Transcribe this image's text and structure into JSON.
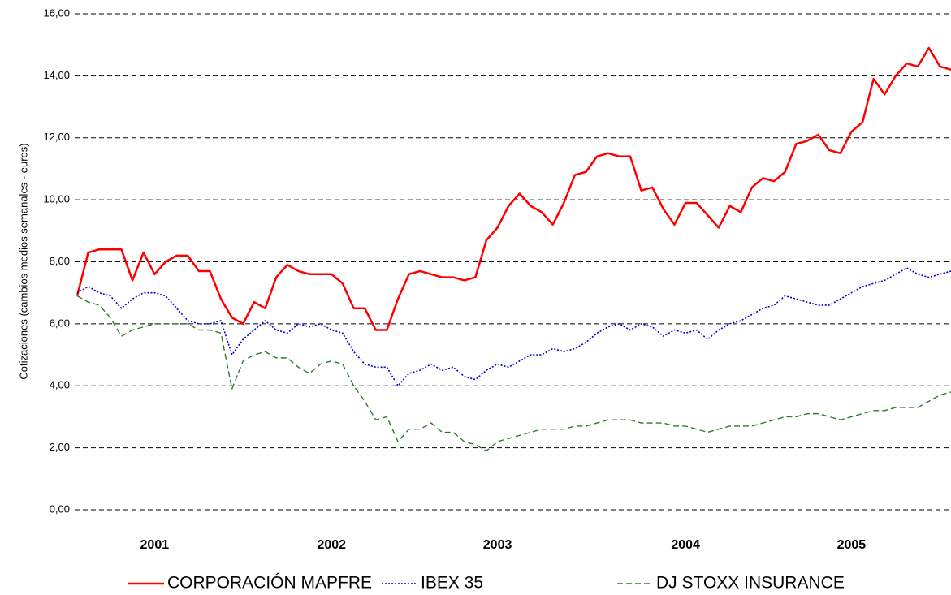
{
  "chart_data": {
    "type": "line",
    "y_label": "Cotizaciones (cambios medios semanales  - euros)",
    "categories": [
      null,
      null,
      null,
      null,
      null,
      null,
      null,
      "2001",
      null,
      null,
      null,
      null,
      null,
      null,
      null,
      null,
      null,
      null,
      null,
      null,
      null,
      null,
      null,
      "2002",
      null,
      null,
      null,
      null,
      null,
      null,
      null,
      null,
      null,
      null,
      null,
      null,
      null,
      null,
      "2003",
      null,
      null,
      null,
      null,
      null,
      null,
      null,
      null,
      null,
      null,
      null,
      null,
      null,
      null,
      null,
      null,
      "2004",
      null,
      null,
      null,
      null,
      null,
      null,
      null,
      null,
      null,
      null,
      null,
      null,
      null,
      null,
      "2005",
      null,
      null,
      null,
      null,
      null,
      null,
      null,
      null,
      null
    ],
    "series": [
      {
        "name": "CORPORACIÓN MAPFRE",
        "color": "#ff0000",
        "style": "solid",
        "values": [
          6.9,
          8.3,
          8.4,
          8.4,
          8.4,
          7.4,
          8.3,
          7.6,
          8.0,
          8.2,
          8.2,
          7.7,
          7.7,
          6.8,
          6.2,
          6.0,
          6.7,
          6.5,
          7.5,
          7.9,
          7.7,
          7.6,
          7.6,
          7.6,
          7.3,
          6.5,
          6.5,
          5.8,
          5.8,
          6.8,
          7.6,
          7.7,
          7.6,
          7.5,
          7.5,
          7.4,
          7.5,
          8.7,
          9.1,
          9.8,
          10.2,
          9.8,
          9.6,
          9.2,
          9.9,
          10.8,
          10.9,
          11.4,
          11.5,
          11.4,
          11.4,
          10.3,
          10.4,
          9.7,
          9.2,
          9.9,
          9.9,
          9.5,
          9.1,
          9.8,
          9.6,
          10.4,
          10.7,
          10.6,
          10.9,
          11.8,
          11.9,
          12.1,
          11.6,
          11.5,
          12.2,
          12.5,
          13.9,
          13.4,
          14.0,
          14.4,
          14.3,
          14.9,
          14.3,
          14.2
        ]
      },
      {
        "name": "IBEX 35",
        "color": "#0000cc",
        "style": "dotted",
        "values": [
          7.0,
          7.2,
          7.0,
          6.9,
          6.5,
          6.8,
          7.0,
          7.0,
          6.9,
          6.5,
          6.1,
          6.0,
          6.0,
          6.1,
          5.0,
          5.5,
          5.8,
          6.1,
          5.8,
          5.7,
          6.0,
          5.9,
          6.0,
          5.8,
          5.7,
          5.1,
          4.7,
          4.6,
          4.6,
          4.0,
          4.4,
          4.5,
          4.7,
          4.5,
          4.6,
          4.3,
          4.2,
          4.5,
          4.7,
          4.6,
          4.8,
          5.0,
          5.0,
          5.2,
          5.1,
          5.2,
          5.4,
          5.7,
          5.9,
          6.0,
          5.8,
          6.0,
          5.9,
          5.6,
          5.8,
          5.7,
          5.8,
          5.5,
          5.8,
          6.0,
          6.1,
          6.3,
          6.5,
          6.6,
          6.9,
          6.8,
          6.7,
          6.6,
          6.6,
          6.8,
          7.0,
          7.2,
          7.3,
          7.4,
          7.6,
          7.8,
          7.6,
          7.5,
          7.6,
          7.7
        ]
      },
      {
        "name": "DJ STOXX INSURANCE",
        "color": "#2f7a2f",
        "style": "dashed",
        "values": [
          6.9,
          6.7,
          6.6,
          6.2,
          5.6,
          5.8,
          5.9,
          6.0,
          6.0,
          6.0,
          6.0,
          5.8,
          5.8,
          5.7,
          3.9,
          4.8,
          5.0,
          5.1,
          4.9,
          4.9,
          4.6,
          4.4,
          4.7,
          4.8,
          4.7,
          4.0,
          3.5,
          2.9,
          3.0,
          2.2,
          2.6,
          2.6,
          2.8,
          2.5,
          2.5,
          2.2,
          2.1,
          1.9,
          2.2,
          2.3,
          2.4,
          2.5,
          2.6,
          2.6,
          2.6,
          2.7,
          2.7,
          2.8,
          2.9,
          2.9,
          2.9,
          2.8,
          2.8,
          2.8,
          2.7,
          2.7,
          2.6,
          2.5,
          2.6,
          2.7,
          2.7,
          2.7,
          2.8,
          2.9,
          3.0,
          3.0,
          3.1,
          3.1,
          3.0,
          2.9,
          3.0,
          3.1,
          3.2,
          3.2,
          3.3,
          3.3,
          3.3,
          3.5,
          3.7,
          3.8
        ]
      }
    ],
    "ylim": [
      0,
      16
    ],
    "yticks": [
      {
        "value": 0,
        "label": "0,00"
      },
      {
        "value": 2,
        "label": "2,00"
      },
      {
        "value": 4,
        "label": "4,00"
      },
      {
        "value": 6,
        "label": "6,00"
      },
      {
        "value": 8,
        "label": "8,00"
      },
      {
        "value": 10,
        "label": "10,00"
      },
      {
        "value": 12,
        "label": "12,00"
      },
      {
        "value": 14,
        "label": "14,00"
      },
      {
        "value": 16,
        "label": "16,00"
      }
    ],
    "grid": true,
    "legend": "bottom"
  }
}
